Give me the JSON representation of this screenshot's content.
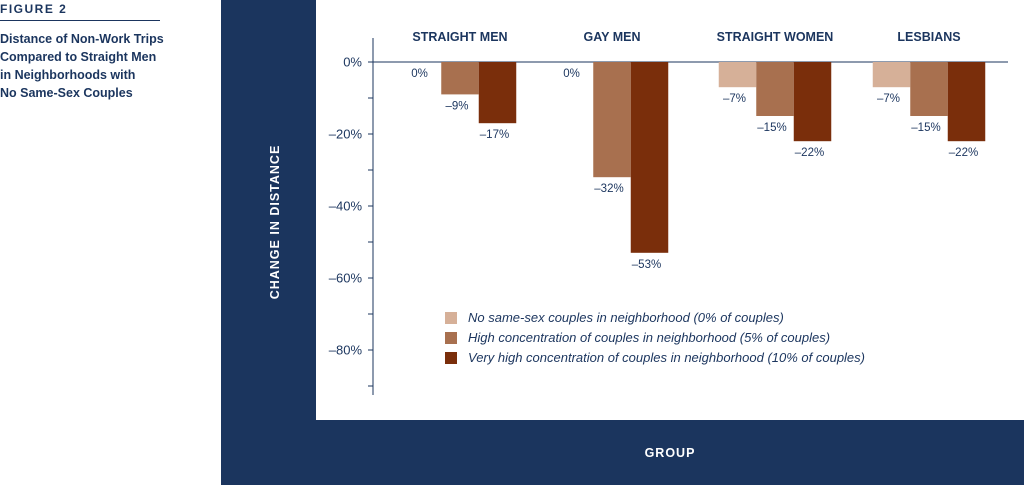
{
  "figure": {
    "label": "FIGURE 2",
    "caption_lines": [
      "Distance of Non-Work Trips",
      "Compared to Straight Men",
      "in Neighborhoods with",
      "No Same-Sex Couples"
    ]
  },
  "colors": {
    "panel": "#1b355e",
    "series": [
      "#d6b098",
      "#a8704f",
      "#7a2e0b"
    ]
  },
  "chart_data": {
    "type": "bar",
    "title": "",
    "xlabel": "GROUP",
    "ylabel": "CHANGE IN DISTANCE",
    "categories": [
      "STRAIGHT MEN",
      "GAY MEN",
      "STRAIGHT WOMEN",
      "LESBIANS"
    ],
    "ylim": [
      -92,
      0
    ],
    "yticks": [
      0,
      -20,
      -40,
      -60,
      -80
    ],
    "ytick_labels": [
      "0%",
      "–20%",
      "–40%",
      "–60%",
      "–80%"
    ],
    "legend_position": "bottom-right",
    "series": [
      {
        "name": "No same-sex couples in neighborhood (0% of couples)",
        "values": [
          0,
          0,
          -7,
          -7
        ],
        "labels": [
          "0%",
          "0%",
          "–7%",
          "–7%"
        ]
      },
      {
        "name": "High concentration of couples in neighborhood (5% of couples)",
        "values": [
          -9,
          -32,
          -15,
          -15
        ],
        "labels": [
          "–9%",
          "–32%",
          "–15%",
          "–15%"
        ]
      },
      {
        "name": "Very high concentration of couples in neighborhood (10% of couples)",
        "values": [
          -17,
          -53,
          -22,
          -22
        ],
        "labels": [
          "–17%",
          "–53%",
          "–22%",
          "–22%"
        ]
      }
    ]
  }
}
